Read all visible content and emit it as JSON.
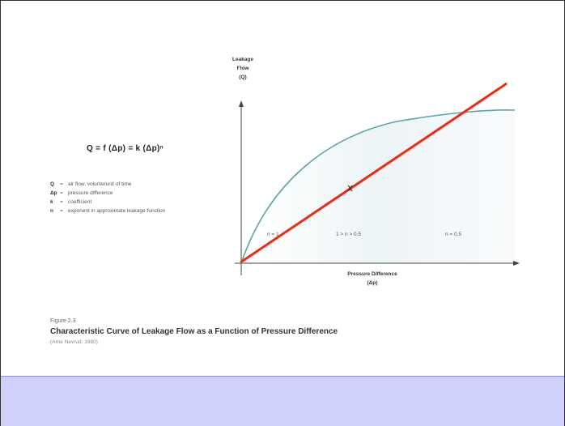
{
  "figure": {
    "formula": "Q = f (Δp) = k (Δp)ⁿ",
    "legend": [
      {
        "symbol": "Q",
        "eq": "=",
        "desc": "air flow, volume/unit of time"
      },
      {
        "symbol": "Δp",
        "eq": "=",
        "desc": "pressure difference"
      },
      {
        "symbol": "k",
        "eq": "=",
        "desc": "coefficient"
      },
      {
        "symbol": "n",
        "eq": "=",
        "desc": "exponent in approximate leakage function"
      }
    ],
    "y_axis_label": [
      "Leakage",
      "Flow",
      "(Q)"
    ],
    "x_axis_label": [
      "Pressure Difference",
      "(Δp)"
    ],
    "regions": [
      "n = 1",
      "1 > n > 0.5",
      "n = 0.5"
    ],
    "annotation_mark": "x",
    "figure_number": "Figure 2.3",
    "caption": "Characteristic Curve of Leakage Flow as a Function of Pressure Difference",
    "source": "(Arne Nevrud, 1980)"
  },
  "colors": {
    "curve": "#5aa5ad",
    "overlay_line": "#f02a10",
    "bottom_bar": "#cfd0fb",
    "axes": "#444444"
  }
}
